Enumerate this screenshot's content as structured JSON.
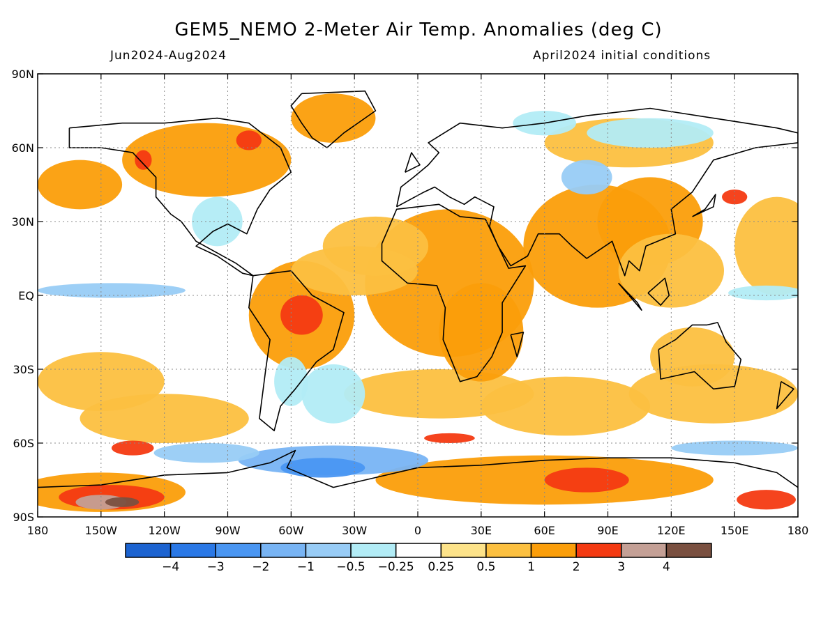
{
  "header": {
    "title": "GEM5_NEMO 2-Meter Air Temp. Anomalies (deg C)",
    "period": "Jun2024-Aug2024",
    "initial_conditions": "April2024 initial conditions"
  },
  "map": {
    "projection": "equirectangular",
    "lon_range": [
      -180,
      180
    ],
    "lat_range": [
      -90,
      90
    ],
    "lat_labels": [
      "90N",
      "60N",
      "30N",
      "EQ",
      "30S",
      "60S",
      "90S"
    ],
    "lon_labels": [
      "180",
      "150W",
      "120W",
      "90W",
      "60W",
      "30W",
      "0",
      "30E",
      "60E",
      "90E",
      "120E",
      "150E",
      "180"
    ],
    "gridlines": "dotted"
  },
  "colorbar": {
    "labels": [
      "-4",
      "-3",
      "-2",
      "-1",
      "-0.5",
      "-0.25",
      "0.25",
      "0.5",
      "1",
      "2",
      "3",
      "4"
    ],
    "colors": [
      "#1c63d0",
      "#2a78e6",
      "#4a96f2",
      "#78b4f4",
      "#98ccf6",
      "#b2ecf6",
      "#ffffff",
      "#fde38a",
      "#fcc040",
      "#fb9e0a",
      "#f43a12",
      "#c4a096",
      "#7a5040"
    ]
  },
  "chart_data": {
    "type": "heatmap",
    "title": "GEM5_NEMO 2-Meter Air Temp. Anomalies (deg C)",
    "subtitle_left": "Jun2024-Aug2024",
    "subtitle_right": "April2024 initial conditions",
    "variable": "2-meter air temperature anomaly",
    "units": "deg C",
    "contour_levels": [
      -4,
      -3,
      -2,
      -1,
      -0.5,
      -0.25,
      0.25,
      0.5,
      1,
      2,
      3,
      4
    ],
    "regions": [
      {
        "lon": -60,
        "lat": -70,
        "anomaly": -2
      },
      {
        "lon": -40,
        "lat": -67,
        "anomaly": -3
      },
      {
        "lon": 80,
        "lat": -75,
        "anomaly": 3
      },
      {
        "lon": -140,
        "lat": -84,
        "anomaly": 4
      },
      {
        "lon": 160,
        "lat": -84,
        "anomaly": 3
      },
      {
        "lon": -135,
        "lat": -62,
        "anomaly": 3
      },
      {
        "lon": -80,
        "lat": 63,
        "anomaly": 3
      },
      {
        "lon": -130,
        "lat": 55,
        "anomaly": 3
      },
      {
        "lon": 150,
        "lat": 40,
        "anomaly": 3
      },
      {
        "lon": 15,
        "lat": -58,
        "anomaly": 3
      },
      {
        "lon": 20,
        "lat": 10,
        "anomaly": 1
      },
      {
        "lon": -50,
        "lat": -5,
        "anomaly": 2
      },
      {
        "lon": 80,
        "lat": 20,
        "anomaly": 1
      },
      {
        "lon": -145,
        "lat": 0,
        "anomaly": -1
      },
      {
        "lon": 165,
        "lat": 0,
        "anomaly": -0.5
      },
      {
        "lon": 80,
        "lat": 48,
        "anomaly": -1
      },
      {
        "lon": 110,
        "lat": 65,
        "anomaly": -0.5
      },
      {
        "lon": -10,
        "lat": 55,
        "anomaly": -0.25
      },
      {
        "lon": -40,
        "lat": -40,
        "anomaly": -0.5
      },
      {
        "lon": -150,
        "lat": 25,
        "anomaly": 0.1
      },
      {
        "lon": 20,
        "lat": 75,
        "anomaly": 0.1
      },
      {
        "lon": 140,
        "lat": -25,
        "anomaly": 0.3
      }
    ]
  }
}
